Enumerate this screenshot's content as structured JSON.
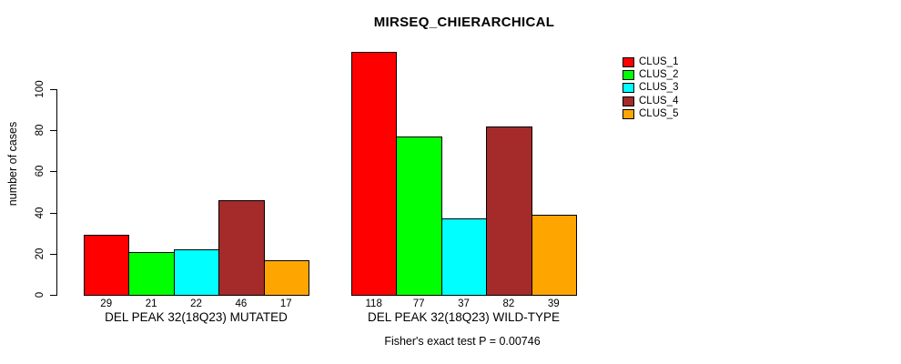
{
  "chart_data": {
    "type": "bar",
    "title": "MIRSEQ_CHIERARCHICAL",
    "ylabel": "number of cases",
    "xlabel": "",
    "ylim": [
      0,
      100
    ],
    "yticks": [
      0,
      20,
      40,
      60,
      80,
      100
    ],
    "grid": false,
    "background": "#FFFFFF",
    "legend_position": "top-right",
    "show_values_under_bars": true,
    "categories": [
      "DEL PEAK 32(18Q23) MUTATED",
      "DEL PEAK 32(18Q23) WILD-TYPE"
    ],
    "series": [
      {
        "name": "CLUS_1",
        "color": "#FF0000",
        "values": [
          29,
          118
        ]
      },
      {
        "name": "CLUS_2",
        "color": "#00FF00",
        "values": [
          21,
          77
        ]
      },
      {
        "name": "CLUS_3",
        "color": "#00FFFF",
        "values": [
          22,
          37
        ]
      },
      {
        "name": "CLUS_4",
        "color": "#A52A2A",
        "values": [
          46,
          82
        ]
      },
      {
        "name": "CLUS_5",
        "color": "#FFA500",
        "values": [
          17,
          39
        ]
      }
    ],
    "annotation": "Fisher's exact test P = 0.00746"
  }
}
